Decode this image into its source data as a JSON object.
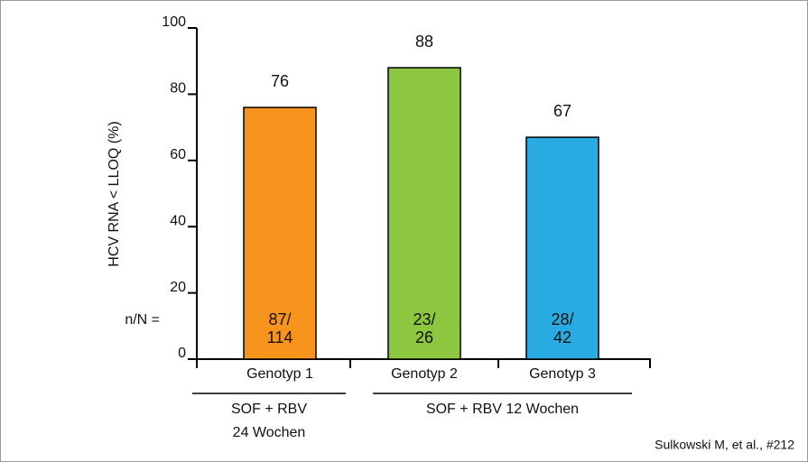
{
  "chart_data": {
    "type": "bar",
    "y_label": "HCV RNA < LLOQ (%)",
    "categories": [
      "Genotyp 1",
      "Genotyp 2",
      "Genotyp 3"
    ],
    "values": [
      76,
      88,
      67
    ],
    "colors": [
      "#f7941d",
      "#8dc63f",
      "#29abe2"
    ],
    "n_prefix": "n/N =",
    "n_labels": [
      [
        "87/",
        "114"
      ],
      [
        "23/",
        "26"
      ],
      [
        "28/",
        "42"
      ]
    ],
    "groups": [
      [
        "SOF + RBV",
        "24 Wochen"
      ],
      [
        "SOF + RBV 12 Wochen"
      ]
    ],
    "ylim": [
      0,
      100
    ],
    "yticks": [
      0,
      20,
      40,
      60,
      80,
      100
    ],
    "source": "Sulkowski M, et al., #212"
  }
}
